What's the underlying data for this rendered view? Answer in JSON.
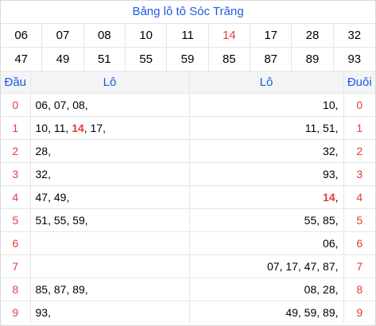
{
  "title": "Bảng lô tô Sóc Trăng",
  "numbers_row1": [
    "06",
    "07",
    "08",
    "10",
    "11",
    "14",
    "17",
    "28",
    "32"
  ],
  "numbers_row2": [
    "47",
    "49",
    "51",
    "55",
    "59",
    "85",
    "87",
    "89",
    "93"
  ],
  "highlight_number": "14",
  "headers": {
    "dau": "Đầu",
    "lo_left": "Lô",
    "lo_right": "Lô",
    "duoi": "Đuôi"
  },
  "rows": [
    {
      "digit": "0",
      "left": [
        "06",
        "07",
        "08"
      ],
      "right": [
        "10"
      ]
    },
    {
      "digit": "1",
      "left": [
        "10",
        "11",
        "14",
        "17"
      ],
      "right": [
        "11",
        "51"
      ]
    },
    {
      "digit": "2",
      "left": [
        "28"
      ],
      "right": [
        "32"
      ]
    },
    {
      "digit": "3",
      "left": [
        "32"
      ],
      "right": [
        "93"
      ]
    },
    {
      "digit": "4",
      "left": [
        "47",
        "49"
      ],
      "right": [
        "14"
      ]
    },
    {
      "digit": "5",
      "left": [
        "51",
        "55",
        "59"
      ],
      "right": [
        "55",
        "85"
      ]
    },
    {
      "digit": "6",
      "left": [],
      "right": [
        "06"
      ]
    },
    {
      "digit": "7",
      "left": [],
      "right": [
        "07",
        "17",
        "47",
        "87"
      ]
    },
    {
      "digit": "8",
      "left": [
        "85",
        "87",
        "89"
      ],
      "right": [
        "08",
        "28"
      ]
    },
    {
      "digit": "9",
      "left": [
        "93"
      ],
      "right": [
        "49",
        "59",
        "89"
      ]
    }
  ],
  "colors": {
    "title_blue": "#1f5ae0",
    "digit_red": "#e53a3a"
  }
}
